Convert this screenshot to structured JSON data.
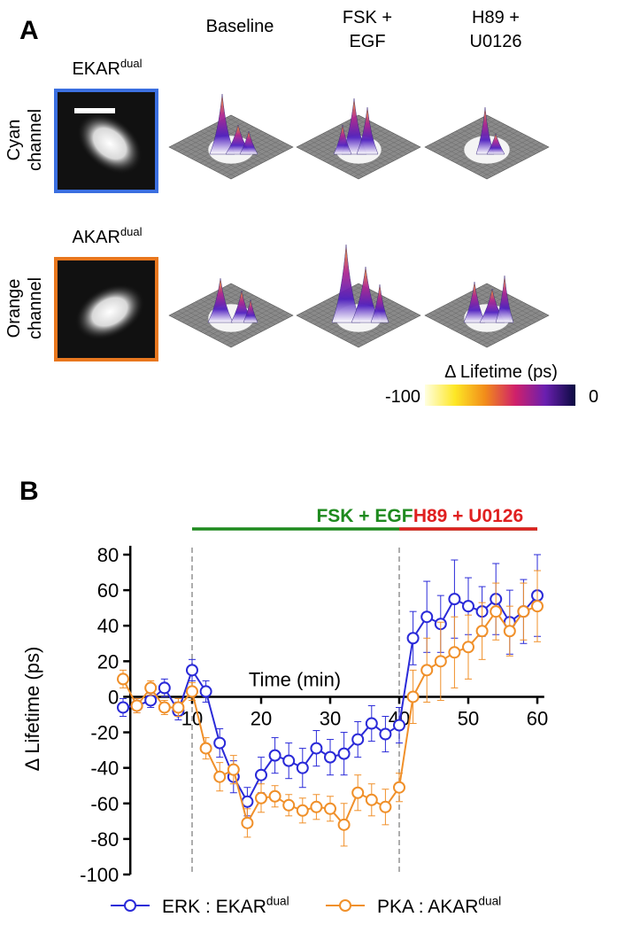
{
  "panel_a": {
    "label": "A",
    "columns": [
      [
        "Baseline"
      ],
      [
        "FSK +",
        "EGF"
      ],
      [
        "H89 +",
        "U0126"
      ]
    ],
    "rows": [
      {
        "title": [
          "Cyan",
          "channel"
        ],
        "sensor": "EKAR",
        "sensor_sup": "dual",
        "color": "#3b6fe0"
      },
      {
        "title": [
          "Orange",
          "channel"
        ],
        "sensor": "AKAR",
        "sensor_sup": "dual",
        "color": "#e8771e"
      }
    ],
    "colorbar": {
      "title": "Δ Lifetime (ps)",
      "min": -100,
      "max": 0
    }
  },
  "chart_data": {
    "type": "line",
    "label": "B",
    "xlabel": "Time (min)",
    "ylabel": "Δ Lifetime (ps)",
    "x": [
      0,
      2,
      4,
      6,
      8,
      10,
      12,
      14,
      16,
      18,
      20,
      22,
      24,
      26,
      28,
      30,
      32,
      34,
      36,
      38,
      40,
      42,
      44,
      46,
      48,
      50,
      52,
      54,
      56,
      58,
      60
    ],
    "xlim": [
      -1,
      61
    ],
    "xticks": [
      10,
      20,
      30,
      40,
      50,
      60
    ],
    "ylim": [
      -100,
      80
    ],
    "yticks": [
      -100,
      -80,
      -60,
      -40,
      -20,
      0,
      20,
      40,
      60,
      80
    ],
    "vlines": [
      10,
      40
    ],
    "treatments": [
      {
        "text": "FSK + EGF",
        "color": "#1e8a1e",
        "x": [
          10,
          60
        ]
      },
      {
        "text": "H89 + U0126",
        "color": "#e02020",
        "x": [
          40,
          60
        ]
      }
    ],
    "series": [
      {
        "name": "ERK : EKAR",
        "name_sup": "dual",
        "color": "#2a2ad8",
        "values": [
          -6,
          -5,
          -2,
          5,
          -8,
          15,
          3,
          -26,
          -45,
          -59,
          -44,
          -33,
          -36,
          -40,
          -29,
          -34,
          -32,
          -24,
          -15,
          -21,
          -16,
          33,
          45,
          41,
          55,
          51,
          48,
          55,
          42,
          48,
          57
        ],
        "errors": [
          5,
          4,
          4,
          5,
          5,
          6,
          6,
          8,
          9,
          8,
          10,
          10,
          10,
          11,
          10,
          10,
          12,
          10,
          10,
          10,
          10,
          15,
          20,
          16,
          22,
          16,
          14,
          20,
          18,
          18,
          23
        ]
      },
      {
        "name": "PKA : AKAR",
        "name_sup": "dual",
        "color": "#f0902a",
        "values": [
          10,
          -5,
          5,
          -6,
          -6,
          3,
          -29,
          -45,
          -41,
          -71,
          -57,
          -56,
          -61,
          -64,
          -62,
          -63,
          -72,
          -54,
          -58,
          -62,
          -51,
          0,
          15,
          20,
          25,
          28,
          37,
          48,
          37,
          48,
          51
        ],
        "errors": [
          5,
          4,
          4,
          4,
          5,
          5,
          6,
          8,
          8,
          8,
          8,
          6,
          6,
          7,
          7,
          7,
          12,
          10,
          9,
          10,
          8,
          15,
          18,
          22,
          20,
          18,
          16,
          16,
          14,
          16,
          20
        ]
      }
    ]
  }
}
